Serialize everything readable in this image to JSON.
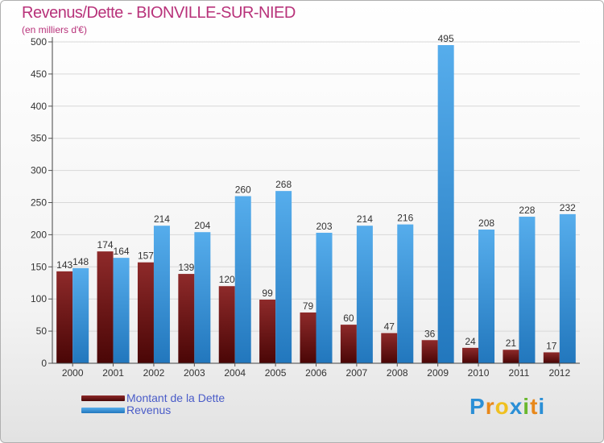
{
  "header": {
    "title": "Revenus/Dette - BIONVILLE-SUR-NIED",
    "subtitle": "(en milliers d'€)"
  },
  "chart_data": {
    "type": "bar",
    "categories": [
      "2000",
      "2001",
      "2002",
      "2003",
      "2004",
      "2005",
      "2006",
      "2007",
      "2008",
      "2009",
      "2010",
      "2011",
      "2012"
    ],
    "series": [
      {
        "name": "Montant de la Dette",
        "color": "#7a1414",
        "values": [
          143,
          174,
          157,
          139,
          120,
          99,
          79,
          60,
          47,
          36,
          24,
          21,
          17
        ]
      },
      {
        "name": "Revenus",
        "color": "#3b95d8",
        "values": [
          148,
          164,
          214,
          204,
          260,
          268,
          203,
          214,
          216,
          495,
          208,
          228,
          232
        ]
      }
    ],
    "yticks": [
      0,
      50,
      100,
      150,
      200,
      250,
      300,
      350,
      400,
      450,
      500
    ],
    "ylim": [
      0,
      500
    ],
    "grid": true,
    "legend_position": "bottom-left"
  },
  "legend": {
    "items": [
      {
        "label": "Montant de la Dette",
        "color": "#6e0f0f"
      },
      {
        "label": "Revenus",
        "color": "#3b95d8"
      }
    ]
  },
  "logo": {
    "letters": [
      "P",
      "r",
      "o",
      "x",
      "i",
      "t",
      "i"
    ],
    "colors": [
      "#2b8fd6",
      "#e8881a",
      "#f0c020",
      "#2b8fd6",
      "#6ab82e",
      "#e8881a",
      "#2b8fd6"
    ]
  }
}
